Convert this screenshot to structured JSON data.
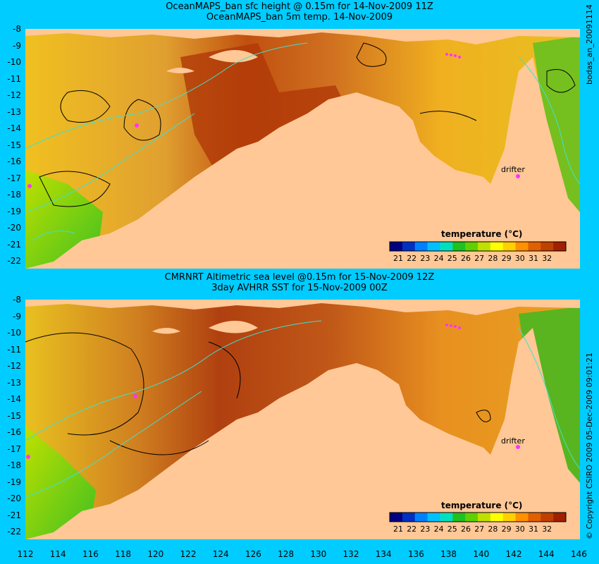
{
  "panels": [
    {
      "title_line1": "OceanMAPS_ban sfc height @ 0.15m for 14-Nov-2009 11Z",
      "title_line2": "OceanMAPS_ban 5m temp. 14-Nov-2009",
      "side_label": "bodas_an_20091114",
      "legend_title": "temperature (°C)",
      "drifter_label": "drifter"
    },
    {
      "title_line1": "CMRNRT Altimetric sea level  @0.15m  for 15-Nov-2009 12Z",
      "title_line2": "3day AVHRR SST for 15-Nov-2009 00Z",
      "side_label": "© Copyright CSIRO 2009   05-Dec-2009 09:01:21",
      "legend_title": "temperature (°C)",
      "drifter_label": "drifter"
    }
  ],
  "y_axis_labels": [
    "-8",
    "-9",
    "-10",
    "-11",
    "-12",
    "-13",
    "-14",
    "-15",
    "-16",
    "-17",
    "-18",
    "-19",
    "-20",
    "-21",
    "-22"
  ],
  "x_axis_labels": [
    "112",
    "114",
    "116",
    "118",
    "120",
    "122",
    "124",
    "126",
    "128",
    "130",
    "132",
    "134",
    "136",
    "138",
    "140",
    "142",
    "144",
    "146"
  ],
  "legend_ticks": [
    "21",
    "22",
    "23",
    "24",
    "25",
    "26",
    "27",
    "28",
    "29",
    "30",
    "31",
    "32"
  ],
  "colors": {
    "background": "#00ccff",
    "land": "#ffc896",
    "contour_black": "#000000",
    "contour_cyan": "#40e0d0",
    "drifter": "#ff33ff",
    "scale": [
      "#000080",
      "#0030c0",
      "#0080ff",
      "#00c0ff",
      "#00e0c0",
      "#20c020",
      "#60d000",
      "#c0e000",
      "#ffff00",
      "#ffd000",
      "#ff9000",
      "#e06000",
      "#c04000",
      "#a02000"
    ]
  }
}
